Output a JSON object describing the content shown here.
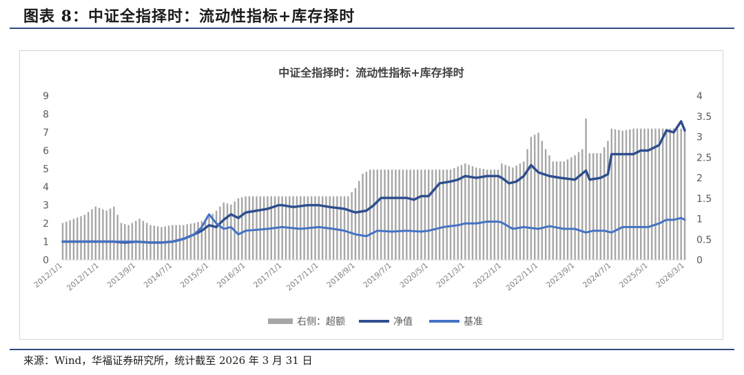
{
  "figure": {
    "title": "图表 8：中证全指择时：流动性指标+库存择时",
    "source": "来源：Wind，华福证券研究所，统计截至 2026 年 3 月 31 日"
  },
  "colors": {
    "bars": "#a6a6a6",
    "net_value": "#2e4e8e",
    "benchmark": "#4472c4",
    "rule": "#2e4a7d"
  },
  "chart_data": {
    "type": "line",
    "title": "中证全指择时：流动性指标+库存择时",
    "x_tick_labels": [
      "2012/1/1",
      "2012/11/1",
      "2013/9/1",
      "2014/7/1",
      "2015/5/1",
      "2016/3/1",
      "2017/1/1",
      "2017/11/1",
      "2018/9/1",
      "2019/7/1",
      "2020/5/1",
      "2021/3/1",
      "2022/1/1",
      "2022/11/1",
      "2023/9/1",
      "2024/7/1",
      "2025/5/1",
      "2026/3/1"
    ],
    "left_axis": {
      "ylim": [
        0,
        9
      ],
      "ticks": [
        "0",
        "1",
        "2",
        "3",
        "4",
        "5",
        "6",
        "7",
        "8",
        "9"
      ]
    },
    "right_axis": {
      "ylim": [
        0,
        4
      ],
      "ticks": [
        "0",
        "0.5",
        "1",
        "1.5",
        "2",
        "2.5",
        "3",
        "3.5",
        "4"
      ]
    },
    "legend_position": "bottom",
    "x_start": "2012/1/1",
    "x_end": "2026/3/1",
    "series": [
      {
        "name": "右侧：超额",
        "kind": "bar",
        "axis": "right",
        "points": [
          [
            "2012/1/1",
            0.9
          ],
          [
            "2012/4/1",
            1.0
          ],
          [
            "2012/7/1",
            1.1
          ],
          [
            "2012/10/1",
            1.3
          ],
          [
            "2013/1/1",
            1.2
          ],
          [
            "2013/3/1",
            1.3
          ],
          [
            "2013/5/1",
            0.9
          ],
          [
            "2013/7/1",
            0.85
          ],
          [
            "2013/10/1",
            1.0
          ],
          [
            "2014/1/1",
            0.85
          ],
          [
            "2014/4/1",
            0.8
          ],
          [
            "2014/7/1",
            0.85
          ],
          [
            "2014/10/1",
            0.85
          ],
          [
            "2015/1/1",
            0.9
          ],
          [
            "2015/3/1",
            0.95
          ],
          [
            "2015/5/1",
            1.05
          ],
          [
            "2015/7/1",
            1.2
          ],
          [
            "2015/9/1",
            1.4
          ],
          [
            "2015/11/1",
            1.35
          ],
          [
            "2016/1/1",
            1.5
          ],
          [
            "2016/3/1",
            1.55
          ],
          [
            "2016/6/1",
            1.55
          ],
          [
            "2017/1/1",
            1.55
          ],
          [
            "2017/6/1",
            1.55
          ],
          [
            "2017/11/1",
            1.55
          ],
          [
            "2018/3/1",
            1.55
          ],
          [
            "2018/7/1",
            1.55
          ],
          [
            "2018/9/1",
            1.75
          ],
          [
            "2018/11/1",
            2.1
          ],
          [
            "2019/1/1",
            2.2
          ],
          [
            "2019/7/1",
            2.2
          ],
          [
            "2020/1/1",
            2.2
          ],
          [
            "2020/5/1",
            2.2
          ],
          [
            "2020/11/1",
            2.2
          ],
          [
            "2021/3/1",
            2.35
          ],
          [
            "2021/6/1",
            2.25
          ],
          [
            "2021/9/1",
            2.2
          ],
          [
            "2021/12/1",
            2.2
          ],
          [
            "2022/1/1",
            2.35
          ],
          [
            "2022/4/1",
            2.25
          ],
          [
            "2022/7/1",
            2.4
          ],
          [
            "2022/9/1",
            3.0
          ],
          [
            "2022/11/1",
            3.1
          ],
          [
            "2023/1/1",
            2.7
          ],
          [
            "2023/3/1",
            2.4
          ],
          [
            "2023/6/1",
            2.4
          ],
          [
            "2023/9/1",
            2.55
          ],
          [
            "2023/11/1",
            2.7
          ],
          [
            "2023/12/1",
            3.45
          ],
          [
            "2024/1/1",
            2.6
          ],
          [
            "2024/4/1",
            2.6
          ],
          [
            "2024/6/1",
            2.9
          ],
          [
            "2024/7/1",
            3.2
          ],
          [
            "2024/10/1",
            3.15
          ],
          [
            "2025/1/1",
            3.2
          ],
          [
            "2025/5/1",
            3.2
          ],
          [
            "2025/9/1",
            3.2
          ],
          [
            "2026/1/1",
            3.2
          ],
          [
            "2026/3/1",
            3.2
          ]
        ]
      },
      {
        "name": "净值",
        "kind": "line",
        "axis": "left",
        "points": [
          [
            "2012/1/1",
            1.0
          ],
          [
            "2012/4/1",
            1.0
          ],
          [
            "2012/7/1",
            1.0
          ],
          [
            "2012/11/1",
            1.0
          ],
          [
            "2013/3/1",
            1.0
          ],
          [
            "2013/6/1",
            0.95
          ],
          [
            "2013/9/1",
            1.0
          ],
          [
            "2014/1/1",
            0.95
          ],
          [
            "2014/4/1",
            0.95
          ],
          [
            "2014/7/1",
            1.0
          ],
          [
            "2014/10/1",
            1.15
          ],
          [
            "2015/1/1",
            1.4
          ],
          [
            "2015/3/1",
            1.6
          ],
          [
            "2015/5/1",
            1.9
          ],
          [
            "2015/7/1",
            1.8
          ],
          [
            "2015/9/1",
            2.2
          ],
          [
            "2015/11/1",
            2.5
          ],
          [
            "2016/1/1",
            2.3
          ],
          [
            "2016/3/1",
            2.6
          ],
          [
            "2016/6/1",
            2.7
          ],
          [
            "2016/9/1",
            2.8
          ],
          [
            "2016/12/1",
            3.0
          ],
          [
            "2017/1/1",
            3.0
          ],
          [
            "2017/4/1",
            2.9
          ],
          [
            "2017/8/1",
            3.0
          ],
          [
            "2017/11/1",
            3.0
          ],
          [
            "2018/2/1",
            2.9
          ],
          [
            "2018/6/1",
            2.8
          ],
          [
            "2018/9/1",
            2.6
          ],
          [
            "2018/12/1",
            2.7
          ],
          [
            "2019/2/1",
            3.0
          ],
          [
            "2019/4/1",
            3.4
          ],
          [
            "2019/7/1",
            3.4
          ],
          [
            "2019/11/1",
            3.4
          ],
          [
            "2020/1/1",
            3.3
          ],
          [
            "2020/3/1",
            3.5
          ],
          [
            "2020/5/1",
            3.5
          ],
          [
            "2020/8/1",
            4.2
          ],
          [
            "2020/11/1",
            4.3
          ],
          [
            "2021/1/1",
            4.4
          ],
          [
            "2021/3/1",
            4.6
          ],
          [
            "2021/6/1",
            4.5
          ],
          [
            "2021/9/1",
            4.6
          ],
          [
            "2021/12/1",
            4.6
          ],
          [
            "2022/1/1",
            4.5
          ],
          [
            "2022/3/1",
            4.2
          ],
          [
            "2022/5/1",
            4.3
          ],
          [
            "2022/7/1",
            4.6
          ],
          [
            "2022/9/1",
            5.2
          ],
          [
            "2022/11/1",
            4.8
          ],
          [
            "2023/2/1",
            4.6
          ],
          [
            "2023/5/1",
            4.5
          ],
          [
            "2023/9/1",
            4.4
          ],
          [
            "2023/12/1",
            4.9
          ],
          [
            "2024/1/1",
            4.4
          ],
          [
            "2024/4/1",
            4.5
          ],
          [
            "2024/6/1",
            4.7
          ],
          [
            "2024/7/1",
            5.8
          ],
          [
            "2024/10/1",
            5.8
          ],
          [
            "2025/1/1",
            5.8
          ],
          [
            "2025/3/1",
            6.0
          ],
          [
            "2025/5/1",
            6.0
          ],
          [
            "2025/8/1",
            6.3
          ],
          [
            "2025/10/1",
            7.1
          ],
          [
            "2025/12/1",
            7.0
          ],
          [
            "2026/2/1",
            7.6
          ],
          [
            "2026/3/1",
            7.1
          ]
        ]
      },
      {
        "name": "基准",
        "kind": "line",
        "axis": "left",
        "points": [
          [
            "2012/1/1",
            1.0
          ],
          [
            "2012/4/1",
            1.0
          ],
          [
            "2012/7/1",
            1.0
          ],
          [
            "2012/11/1",
            1.0
          ],
          [
            "2013/3/1",
            1.0
          ],
          [
            "2013/6/1",
            1.0
          ],
          [
            "2013/9/1",
            1.0
          ],
          [
            "2014/1/1",
            0.95
          ],
          [
            "2014/4/1",
            0.95
          ],
          [
            "2014/7/1",
            1.0
          ],
          [
            "2014/10/1",
            1.15
          ],
          [
            "2015/1/1",
            1.4
          ],
          [
            "2015/3/1",
            1.8
          ],
          [
            "2015/5/1",
            2.5
          ],
          [
            "2015/7/1",
            2.0
          ],
          [
            "2015/9/1",
            1.7
          ],
          [
            "2015/11/1",
            1.8
          ],
          [
            "2016/1/1",
            1.4
          ],
          [
            "2016/3/1",
            1.6
          ],
          [
            "2016/9/1",
            1.7
          ],
          [
            "2017/1/1",
            1.8
          ],
          [
            "2017/6/1",
            1.7
          ],
          [
            "2017/11/1",
            1.8
          ],
          [
            "2018/3/1",
            1.7
          ],
          [
            "2018/6/1",
            1.6
          ],
          [
            "2018/9/1",
            1.4
          ],
          [
            "2018/12/1",
            1.3
          ],
          [
            "2019/3/1",
            1.6
          ],
          [
            "2019/7/1",
            1.55
          ],
          [
            "2019/11/1",
            1.6
          ],
          [
            "2020/3/1",
            1.55
          ],
          [
            "2020/5/1",
            1.6
          ],
          [
            "2020/9/1",
            1.8
          ],
          [
            "2021/1/1",
            1.9
          ],
          [
            "2021/3/1",
            2.0
          ],
          [
            "2021/6/1",
            2.0
          ],
          [
            "2021/9/1",
            2.1
          ],
          [
            "2021/12/1",
            2.1
          ],
          [
            "2022/1/1",
            2.05
          ],
          [
            "2022/4/1",
            1.7
          ],
          [
            "2022/7/1",
            1.8
          ],
          [
            "2022/11/1",
            1.7
          ],
          [
            "2023/2/1",
            1.85
          ],
          [
            "2023/6/1",
            1.7
          ],
          [
            "2023/9/1",
            1.7
          ],
          [
            "2023/12/1",
            1.5
          ],
          [
            "2024/2/1",
            1.6
          ],
          [
            "2024/5/1",
            1.6
          ],
          [
            "2024/7/1",
            1.5
          ],
          [
            "2024/10/1",
            1.8
          ],
          [
            "2025/1/1",
            1.8
          ],
          [
            "2025/5/1",
            1.8
          ],
          [
            "2025/8/1",
            2.0
          ],
          [
            "2025/10/1",
            2.2
          ],
          [
            "2025/12/1",
            2.2
          ],
          [
            "2026/2/1",
            2.3
          ],
          [
            "2026/3/1",
            2.2
          ]
        ]
      }
    ]
  }
}
